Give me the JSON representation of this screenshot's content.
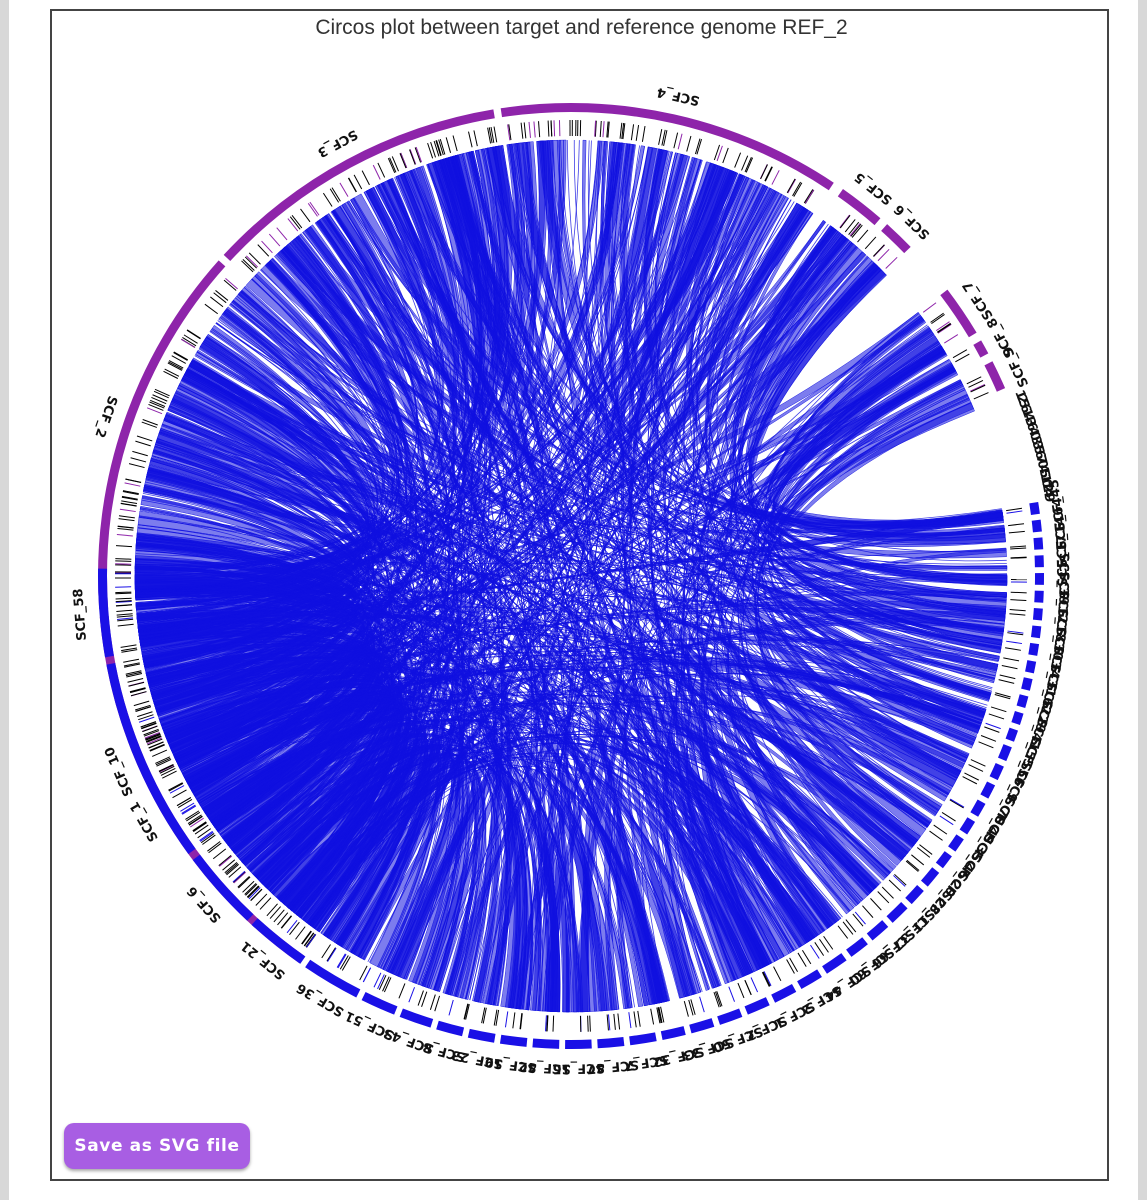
{
  "title": "Circos plot between target and reference genome REF_2",
  "save_button": "Save as SVG file",
  "colors": {
    "target": "#8e24aa",
    "reference": "#1a10e6",
    "link": "#1010e0",
    "track": "#000000"
  },
  "chart_data": {
    "type": "circos",
    "target_segments": [
      {
        "label": "SCF_1",
        "start": 0.695,
        "end": 0.9725
      },
      {
        "label": "SCF_2",
        "start": 0.9775,
        "end": 1.2325
      },
      {
        "label": "SCF_3",
        "start": 1.2375,
        "end": 1.4475
      },
      {
        "label": "SCF_4",
        "start": 1.4525,
        "end": 1.6875
      },
      {
        "label": "SCF_5",
        "start": 1.695,
        "end": 1.727
      },
      {
        "label": "SCF_6",
        "start": 1.733,
        "end": 1.755
      },
      {
        "label": "SCF_7",
        "start": 1.793,
        "end": 1.828
      },
      {
        "label": "SCF_8",
        "start": 1.834,
        "end": 1.844
      },
      {
        "label": "SCF_9",
        "start": 1.85,
        "end": 1.87
      }
    ],
    "small_labels": [
      "1",
      "2",
      "5",
      "6",
      "1",
      "4",
      "3",
      "6",
      "4",
      "0",
      "3",
      "3",
      "5",
      "6",
      "7",
      "0",
      "4",
      "5",
      "1",
      "0",
      "2",
      "4",
      "9"
    ],
    "reference_segments": [
      {
        "label": "SCF_45",
        "start": 1.95,
        "end": 1.958
      },
      {
        "label": "SCF_64",
        "start": 1.962,
        "end": 1.97
      },
      {
        "label": "SCF_14",
        "start": 1.974,
        "end": 1.982
      },
      {
        "label": "SCF_17",
        "start": 1.986,
        "end": 1.994
      },
      {
        "label": "SCF_39",
        "start": 1.998,
        "end": 2.006
      },
      {
        "label": "SCF_12",
        "start": 2.01,
        "end": 2.018
      },
      {
        "label": "SCF_18",
        "start": 2.022,
        "end": 2.03
      },
      {
        "label": "SCF_30",
        "start": 2.034,
        "end": 2.042
      },
      {
        "label": "SCF_34",
        "start": 2.046,
        "end": 2.054
      },
      {
        "label": "SCF_31",
        "start": 2.058,
        "end": 2.066
      },
      {
        "label": "SCF_62",
        "start": 2.07,
        "end": 2.078
      },
      {
        "label": "SCF_29",
        "start": 2.082,
        "end": 2.09
      },
      {
        "label": "SCF_41",
        "start": 2.094,
        "end": 2.102
      },
      {
        "label": "SCF_55",
        "start": 2.106,
        "end": 2.114
      },
      {
        "label": "SCF_56",
        "start": 2.118,
        "end": 2.128
      },
      {
        "label": "SCF_9",
        "start": 2.132,
        "end": 2.142
      },
      {
        "label": "SCF_70",
        "start": 2.146,
        "end": 2.156
      },
      {
        "label": "SCF_49",
        "start": 2.16,
        "end": 2.17
      },
      {
        "label": "SCF_35",
        "start": 2.174,
        "end": 2.184
      },
      {
        "label": "SCF_46",
        "start": 2.188,
        "end": 2.198
      },
      {
        "label": "SCF_20",
        "start": 2.202,
        "end": 2.212
      },
      {
        "label": "SCF_28",
        "start": 2.216,
        "end": 2.228
      },
      {
        "label": "SCF_11",
        "start": 2.232,
        "end": 2.244
      },
      {
        "label": "SCF_37",
        "start": 2.248,
        "end": 2.262
      },
      {
        "label": "SCF_66",
        "start": 2.266,
        "end": 2.28
      },
      {
        "label": "SCF_60",
        "start": 2.284,
        "end": 2.298
      },
      {
        "label": "SCF_44",
        "start": 2.302,
        "end": 2.318
      },
      {
        "label": "SCF_2",
        "start": 2.322,
        "end": 2.338
      },
      {
        "label": "SCF_1",
        "start": 2.342,
        "end": 2.358
      },
      {
        "label": "SCF_2",
        "start": 2.362,
        "end": 2.378
      },
      {
        "label": "SCF_50",
        "start": 2.382,
        "end": 2.398
      },
      {
        "label": "SCF_33",
        "start": 2.402,
        "end": 2.418
      },
      {
        "label": "SCF_32",
        "start": 2.422,
        "end": 2.438
      },
      {
        "label": "SCF_7",
        "start": 2.442,
        "end": 2.46
      },
      {
        "label": "SCF_47",
        "start": 2.464,
        "end": 2.482
      },
      {
        "label": "SCF_15",
        "start": 2.486,
        "end": 2.504
      },
      {
        "label": "SCF_42",
        "start": 2.508,
        "end": 2.526
      },
      {
        "label": "SCF_19",
        "start": 2.53,
        "end": 2.548
      },
      {
        "label": "SCF_23",
        "start": 2.552,
        "end": 2.57
      },
      {
        "label": "SCF_8",
        "start": 2.574,
        "end": 2.592
      },
      {
        "label": "SCF_43",
        "start": 2.596,
        "end": 2.618
      },
      {
        "label": "SCF_51",
        "start": 2.622,
        "end": 2.646
      },
      {
        "label": "SCF_36",
        "start": 2.65,
        "end": 2.69
      },
      {
        "label": "SCF_21",
        "start": 2.694,
        "end": 2.736
      },
      {
        "label": "SCF_6",
        "start": 2.74,
        "end": 2.795
      },
      {
        "label": "SCF_10",
        "start": 2.8,
        "end": 2.94
      },
      {
        "label": "SCF_58",
        "start": 2.945,
        "end": 3.005
      }
    ]
  }
}
